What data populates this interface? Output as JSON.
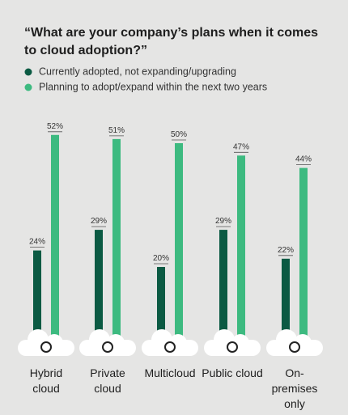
{
  "chart_data": {
    "type": "bar",
    "title": "“What are your company’s plans when it comes to cloud adoption?”",
    "categories": [
      "Hybrid cloud",
      "Private cloud",
      "Multicloud",
      "Public cloud",
      "On-premises only"
    ],
    "series": [
      {
        "name": "Currently adopted, not expanding/upgrading",
        "color": "#0b5a43",
        "values": [
          24,
          29,
          20,
          29,
          22
        ],
        "value_labels": [
          "24%",
          "29%",
          "20%",
          "29%",
          "22%"
        ]
      },
      {
        "name": "Planning to adopt/expand within the next two years",
        "color": "#3dba80",
        "values": [
          52,
          51,
          50,
          47,
          44
        ],
        "value_labels": [
          "52%",
          "51%",
          "50%",
          "47%",
          "44%"
        ]
      }
    ]
  }
}
